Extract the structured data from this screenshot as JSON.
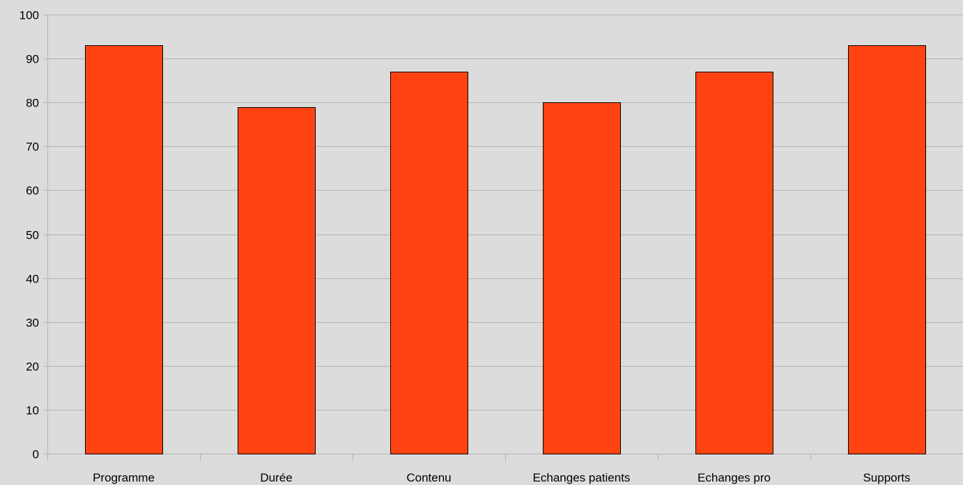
{
  "chart_data": {
    "type": "bar",
    "categories": [
      "Programme",
      "Durée",
      "Contenu",
      "Echanges patients",
      "Echanges pro",
      "Supports"
    ],
    "values": [
      93,
      79,
      87,
      80,
      87,
      93
    ],
    "title": "",
    "xlabel": "",
    "ylabel": "",
    "ylim": [
      0,
      100
    ],
    "yticks": [
      "0",
      "10",
      "20",
      "30",
      "40",
      "50",
      "60",
      "70",
      "80",
      "90",
      "100"
    ],
    "grid": true,
    "legend": "none",
    "colors": {
      "bar": "#ff4411",
      "bar_outline": "#000000",
      "background": "#dcdcdc",
      "grid": "#b3b3b3",
      "axis": "#b3b3b3"
    }
  }
}
